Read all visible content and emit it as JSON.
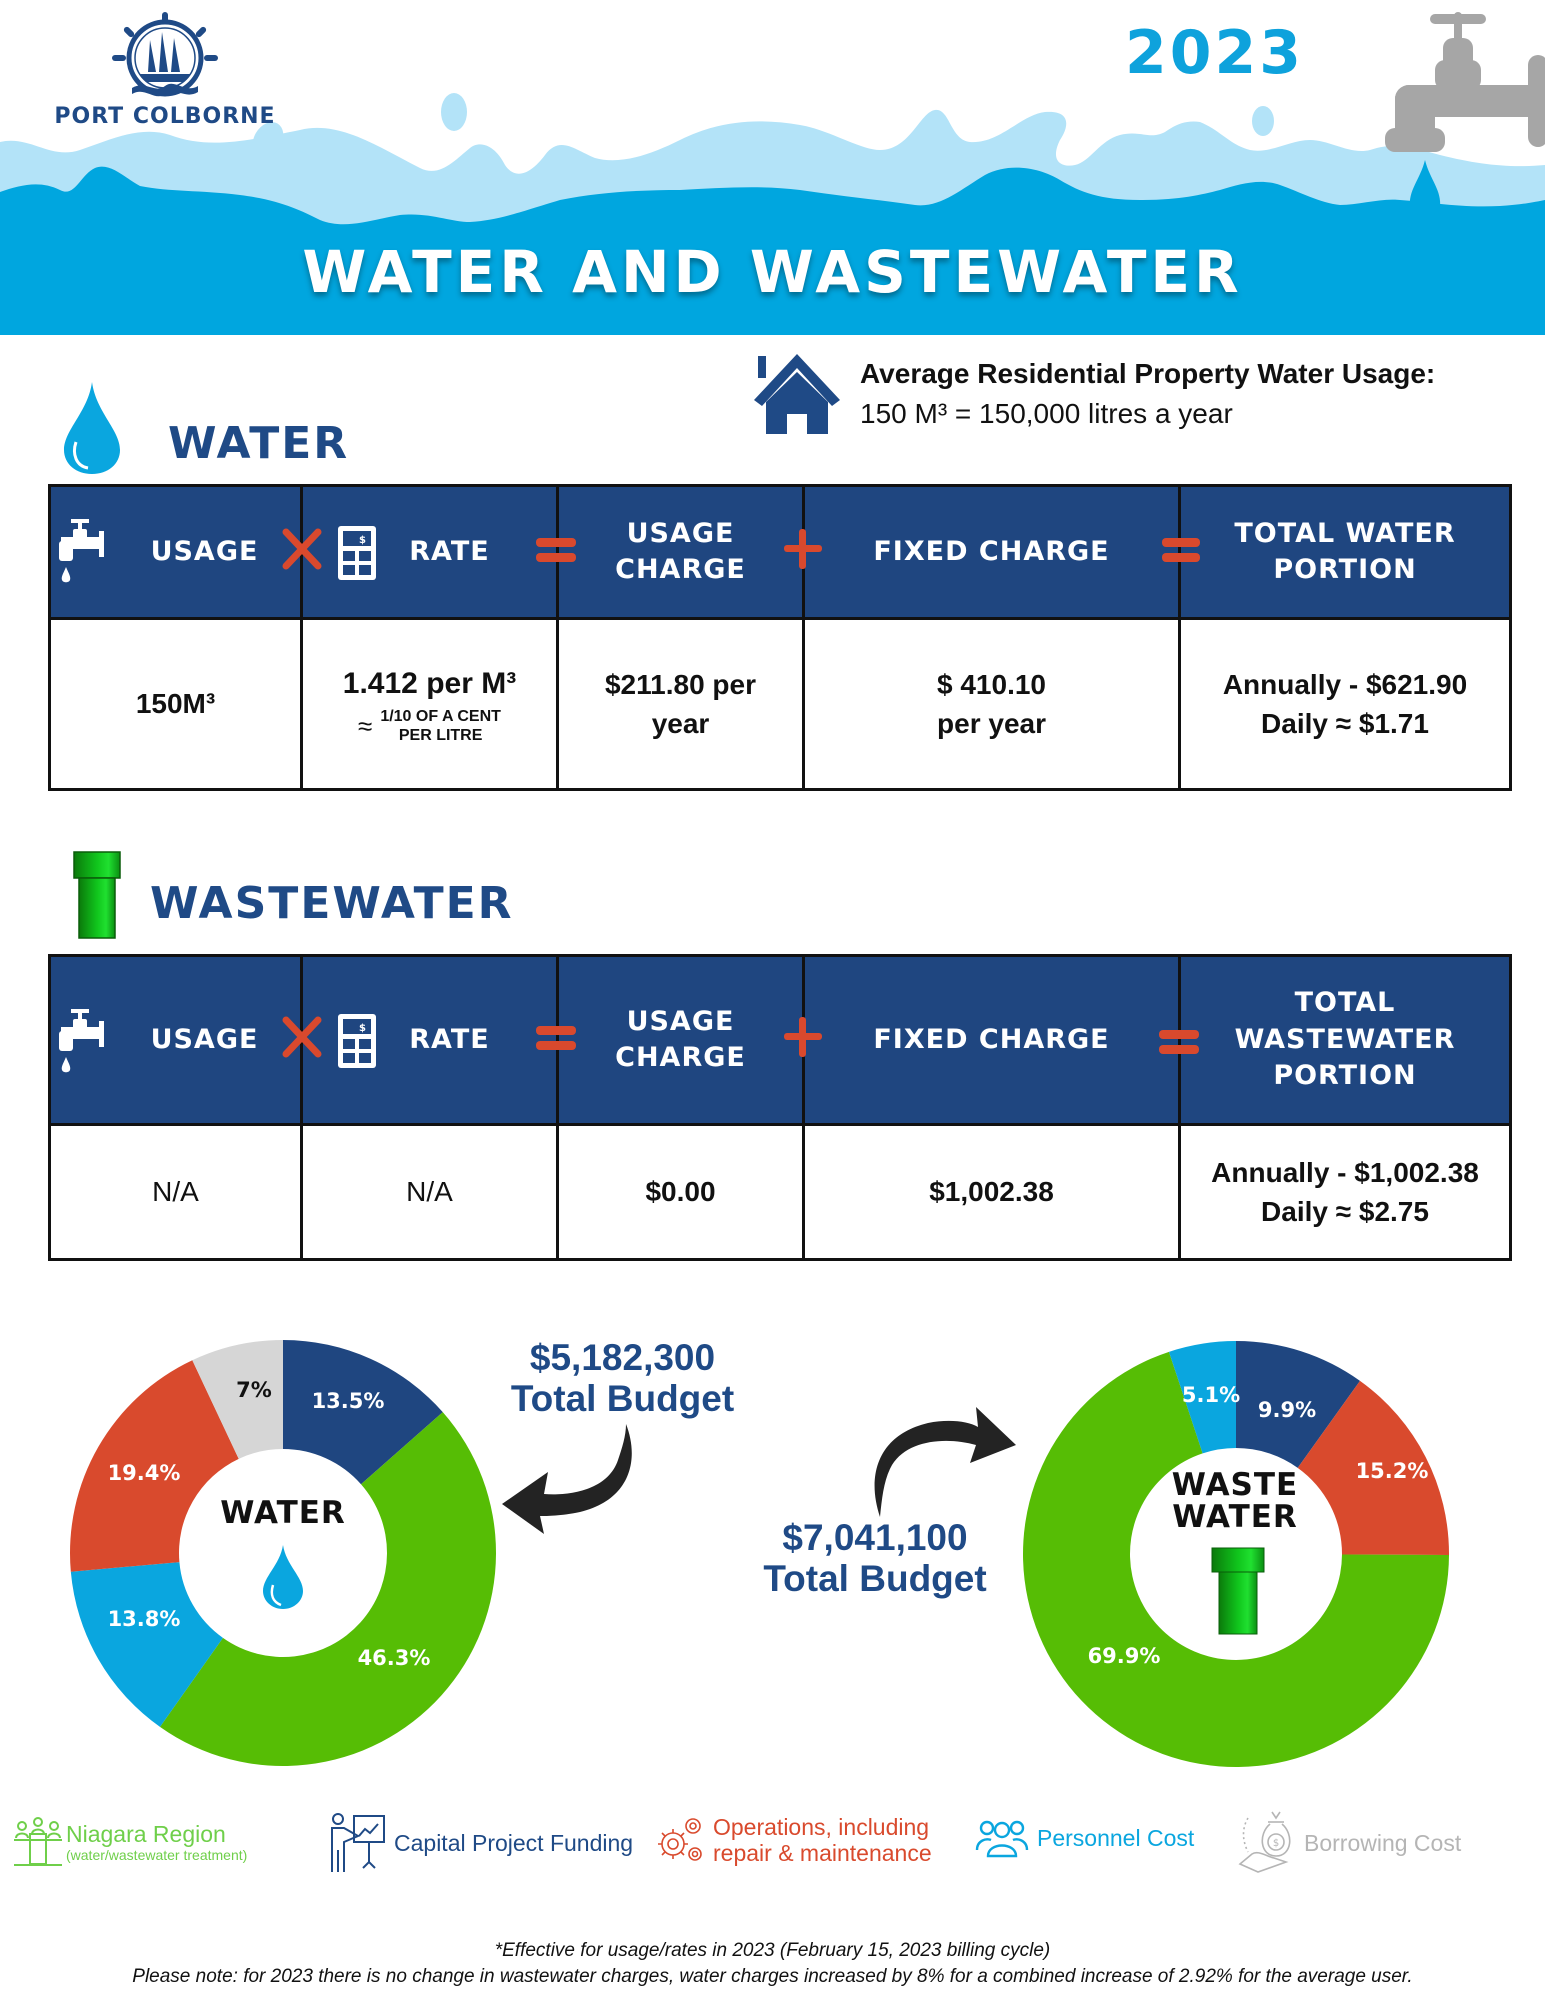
{
  "header": {
    "logo_text": "PORT COLBORNE",
    "year": "2023",
    "title": "WATER AND WASTEWATER",
    "colors": {
      "wave_light": "#b3e3f8",
      "wave_dark": "#00a6df",
      "year": "#0ea2dc",
      "faucet": "#a6a6a6",
      "logo": "#1f4a86"
    }
  },
  "usage_info": {
    "icon": "house-icon",
    "title": "Average Residential Property Water Usage:",
    "value": "150 M³ = 150,000 litres a year"
  },
  "water": {
    "heading": "WATER",
    "icon": "water-drop-icon",
    "table": {
      "headers": [
        "USAGE",
        "RATE",
        "USAGE CHARGE",
        "FIXED CHARGE",
        "TOTAL WATER PORTION"
      ],
      "header_lines": {
        "usage_charge": [
          "USAGE",
          "CHARGE"
        ],
        "total": [
          "TOTAL WATER",
          "PORTION"
        ]
      },
      "operators": [
        "×",
        "=",
        "+",
        "="
      ],
      "row": {
        "usage": "150M³",
        "rate_main": "1.412 per M³",
        "rate_approx": "≈",
        "rate_sub_1": "1/10 OF A CENT",
        "rate_sub_2": "PER LITRE",
        "usage_charge_1": "$211.80 per",
        "usage_charge_2": "year",
        "fixed_charge_1": "$ 410.10",
        "fixed_charge_2": "per year",
        "total_1": "Annually - $621.90",
        "total_2": "Daily ≈ $1.71"
      }
    }
  },
  "wastewater": {
    "heading": "WASTEWATER",
    "icon": "green-pipe-icon",
    "table": {
      "headers": [
        "USAGE",
        "RATE",
        "USAGE CHARGE",
        "FIXED CHARGE",
        "TOTAL WASTEWATER PORTION"
      ],
      "header_lines": {
        "usage_charge": [
          "USAGE",
          "CHARGE"
        ],
        "total": [
          "TOTAL",
          "WASTEWATER",
          "PORTION"
        ]
      },
      "operators": [
        "×",
        "=",
        "+",
        "="
      ],
      "row": {
        "usage": "N/A",
        "rate": "N/A",
        "usage_charge": "$0.00",
        "fixed_charge": "$1,002.38",
        "total_1": "Annually - $1,002.38",
        "total_2": "Daily ≈ $2.75"
      }
    }
  },
  "budgets": {
    "water": {
      "amount": "$5,182,300",
      "label": "Total Budget"
    },
    "wastewater": {
      "amount": "$7,041,100",
      "label": "Total Budget"
    }
  },
  "chart_data": [
    {
      "type": "pie",
      "title": "WATER",
      "subtitle": "$5,182,300 Total Budget",
      "categories": [
        "Capital Project Funding",
        "Niagara Region (water/wastewater treatment)",
        "Personnel Cost",
        "Operations, including repair & maintenance",
        "Borrowing Cost"
      ],
      "values": [
        13.5,
        46.3,
        13.8,
        19.4,
        7.0
      ],
      "labels": [
        "13.5%",
        "46.3%",
        "13.8%",
        "19.4%",
        "7%"
      ],
      "colors": [
        "#1f4680",
        "#56bd05",
        "#0aa6df",
        "#d94a2d",
        "#d6d6d6"
      ],
      "donut": true,
      "start_angle": "12 o'clock, clockwise"
    },
    {
      "type": "pie",
      "title": "WASTE WATER",
      "subtitle": "$7,041,100 Total Budget",
      "categories": [
        "Capital Project Funding",
        "Operations, including repair & maintenance",
        "Niagara Region (water/wastewater treatment)",
        "Personnel Cost"
      ],
      "values": [
        9.9,
        15.2,
        69.9,
        5.1
      ],
      "labels": [
        "9.9%",
        "15.2%",
        "69.9%",
        "5.1%"
      ],
      "colors": [
        "#1f4680",
        "#d94a2d",
        "#56bd05",
        "#0aa6df"
      ],
      "donut": true,
      "start_angle": "12 o'clock, clockwise"
    }
  ],
  "legend": [
    {
      "icon": "people-at-desk-icon",
      "label": "Niagara Region",
      "sub": "(water/wastewater treatment)",
      "color": "#6fcf4a"
    },
    {
      "icon": "presentation-chart-icon",
      "label": "Capital Project Funding",
      "color": "#1f4a86"
    },
    {
      "icon": "gears-icon",
      "label_1": "Operations, including",
      "label_2": "repair & maintenance",
      "color": "#d94a2d"
    },
    {
      "icon": "team-icon",
      "label": "Personnel Cost",
      "color": "#0aa6df"
    },
    {
      "icon": "money-bag-hand-icon",
      "label": "Borrowing Cost",
      "color": "#b5b5b5"
    }
  ],
  "footer": {
    "line_1": "*Effective for usage/rates in 2023 (February 15, 2023 billing cycle)",
    "line_2": "Please note: for 2023 there is no change in wastewater charges, water charges increased by 8% for a combined increase of 2.92% for the average user."
  }
}
